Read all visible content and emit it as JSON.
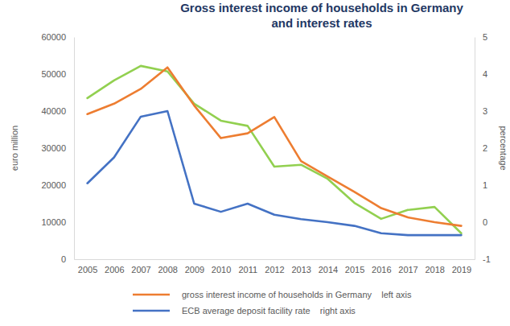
{
  "chart_data": {
    "type": "line",
    "title": "Gross interest income of households in Germany and interest rates",
    "y_label": "euro million",
    "y2_label": "percentage",
    "categories": [
      "2005",
      "2006",
      "2007",
      "2008",
      "2009",
      "2010",
      "2011",
      "2012",
      "2013",
      "2014",
      "2015",
      "2016",
      "2017",
      "2018",
      "2019"
    ],
    "ylim": [
      0,
      60000
    ],
    "yticks": [
      0,
      10000,
      20000,
      30000,
      40000,
      50000,
      60000
    ],
    "y2lim": [
      -1,
      5
    ],
    "y2ticks": [
      -1,
      0,
      1,
      2,
      3,
      4,
      5
    ],
    "grid": false,
    "legend": "bottom",
    "series": [
      {
        "color": "#92d050",
        "axis": "y2",
        "values": [
          3.35,
          3.83,
          4.22,
          4.07,
          3.2,
          2.74,
          2.6,
          1.5,
          1.55,
          1.17,
          0.52,
          0.09,
          0.33,
          0.41,
          -0.3
        ]
      },
      {
        "name": "gross interest income of households in Germany    left axis",
        "color": "#ed7d31",
        "values": [
          39200,
          42000,
          46000,
          51800,
          41500,
          32700,
          34000,
          38400,
          26500,
          22300,
          18200,
          13800,
          11300,
          10000,
          9000
        ]
      },
      {
        "name": "ECB average deposit facility rate    right axis",
        "color": "#4472c4",
        "axis": "y2",
        "values": [
          1.05,
          1.75,
          2.85,
          3.0,
          0.5,
          0.28,
          0.5,
          0.2,
          0.08,
          0.0,
          -0.1,
          -0.3,
          -0.35,
          -0.35,
          -0.35
        ]
      }
    ]
  }
}
